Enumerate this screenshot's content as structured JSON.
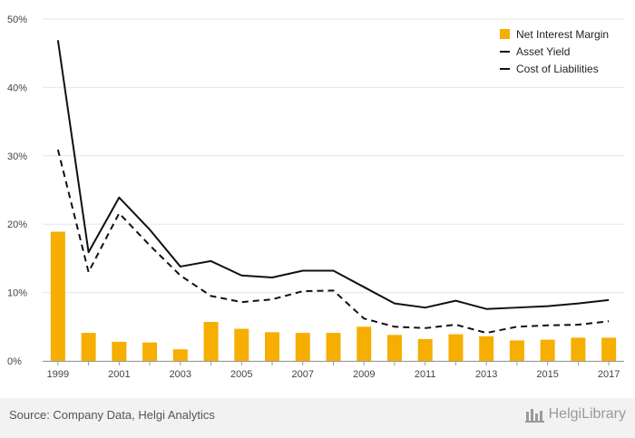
{
  "source": "Source: Company Data, Helgi Analytics",
  "brand": "HelgiLibrary",
  "colors": {
    "bar": "#f6ae00",
    "line": "#111111",
    "grid": "#e6e6e6",
    "axis_text": "#444444"
  },
  "chart_data": {
    "type": "bar+line",
    "x": [
      1999,
      2000,
      2001,
      2002,
      2003,
      2004,
      2005,
      2006,
      2007,
      2008,
      2009,
      2010,
      2011,
      2012,
      2013,
      2014,
      2015,
      2016,
      2017
    ],
    "x_tick_labels": [
      "1999",
      "2001",
      "2003",
      "2005",
      "2007",
      "2009",
      "2011",
      "2013",
      "2015",
      "2017"
    ],
    "y_tick_labels": [
      "0%",
      "10%",
      "20%",
      "30%",
      "40%",
      "50%"
    ],
    "ylim": [
      0,
      50
    ],
    "grid": true,
    "legend_position": "top-right",
    "series": [
      {
        "name": "Net Interest Margin",
        "type": "bar",
        "values": [
          18.9,
          4.1,
          2.8,
          2.7,
          1.7,
          5.7,
          4.7,
          4.2,
          4.1,
          4.1,
          5.0,
          3.8,
          3.2,
          3.9,
          3.6,
          3.0,
          3.1,
          3.4,
          3.4
        ]
      },
      {
        "name": "Asset Yield",
        "type": "line",
        "style": "solid",
        "values": [
          46.9,
          15.9,
          23.9,
          19.2,
          13.8,
          14.6,
          12.5,
          12.2,
          13.2,
          13.2,
          10.8,
          8.4,
          7.8,
          8.8,
          7.6,
          7.8,
          8.0,
          8.4,
          8.9
        ]
      },
      {
        "name": "Cost of Liabilities",
        "type": "line",
        "style": "dashed",
        "values": [
          30.9,
          13.0,
          21.6,
          16.9,
          12.5,
          9.5,
          8.6,
          9.0,
          10.2,
          10.3,
          6.2,
          5.0,
          4.8,
          5.3,
          4.1,
          5.0,
          5.2,
          5.3,
          5.8
        ]
      }
    ]
  }
}
